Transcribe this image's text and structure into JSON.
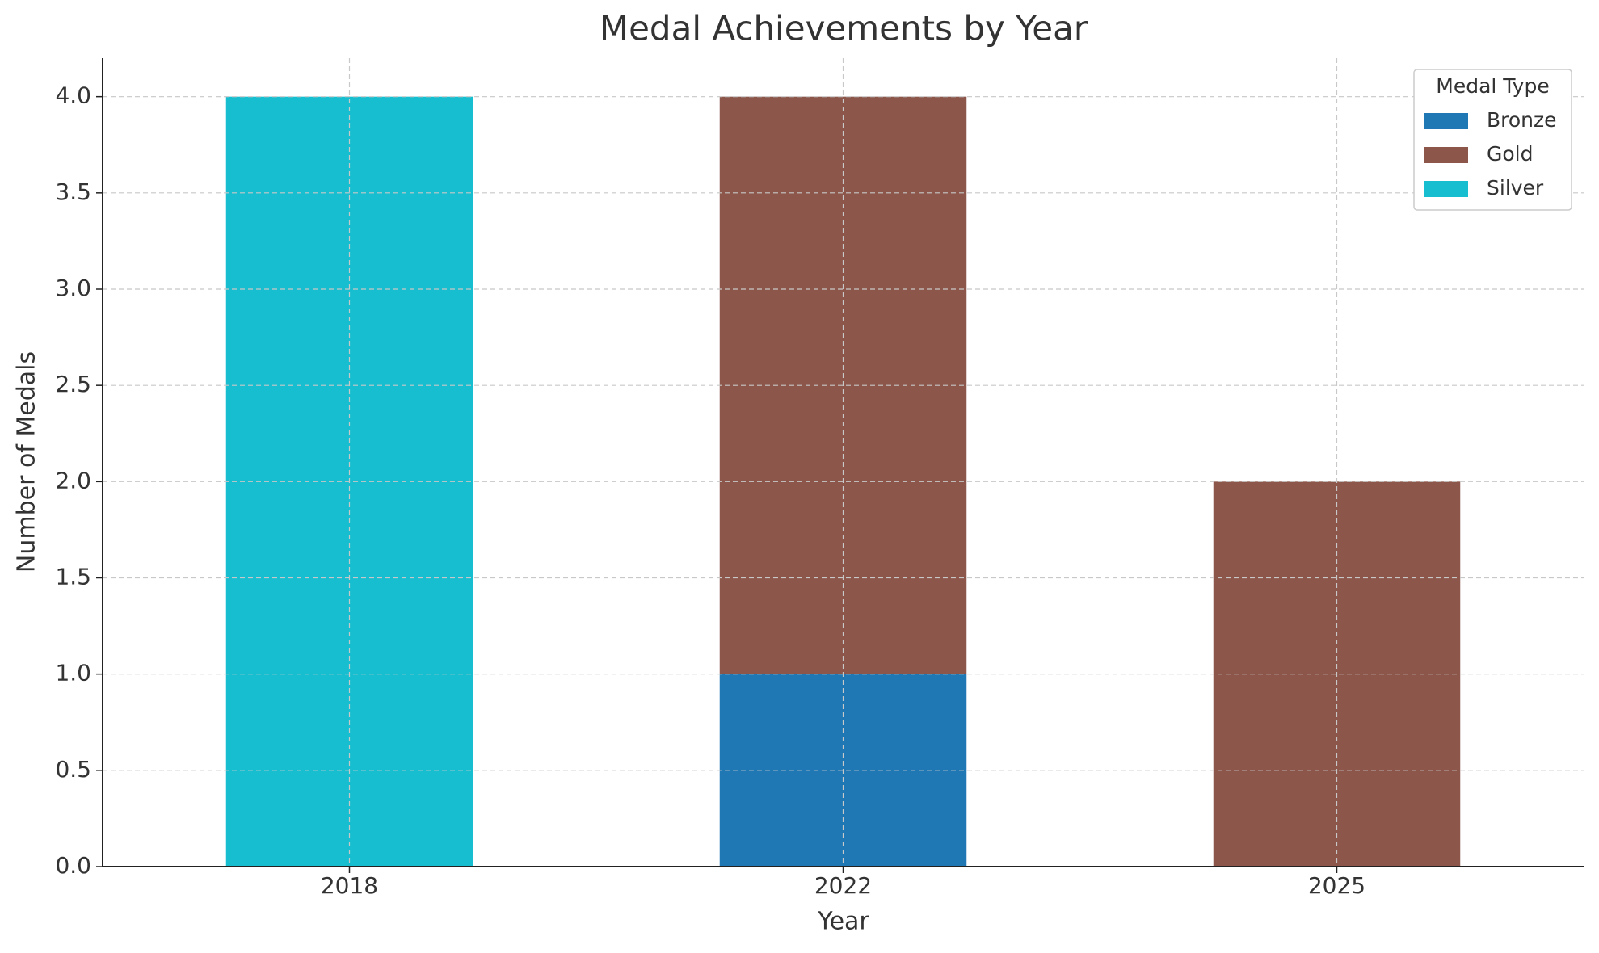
{
  "chart_data": {
    "type": "stacked-bar",
    "title": "Medal Achievements by Year",
    "x_label": "Year",
    "y_label": "Number of Medals",
    "categories": [
      "2018",
      "2022",
      "2025"
    ],
    "series": [
      {
        "name": "Bronze",
        "color": "#1f77b4",
        "values": [
          0,
          1,
          0
        ]
      },
      {
        "name": "Gold",
        "color": "#8c564b",
        "values": [
          0,
          3,
          2
        ]
      },
      {
        "name": "Silver",
        "color": "#17becf",
        "values": [
          4,
          0,
          0
        ]
      }
    ],
    "ylim": [
      0,
      4.2
    ],
    "yticks": [
      {
        "value": 0,
        "label": "0.0"
      },
      0.5,
      {
        "value": 1,
        "label": "1.0"
      },
      1.5,
      {
        "value": 2,
        "label": "2.0"
      },
      2.5,
      {
        "value": 3,
        "label": "3.0"
      },
      3.5,
      {
        "value": 4,
        "label": "4.0"
      }
    ],
    "grid": true,
    "legend_title": "Medal Type",
    "legend_position": "upper-right"
  }
}
